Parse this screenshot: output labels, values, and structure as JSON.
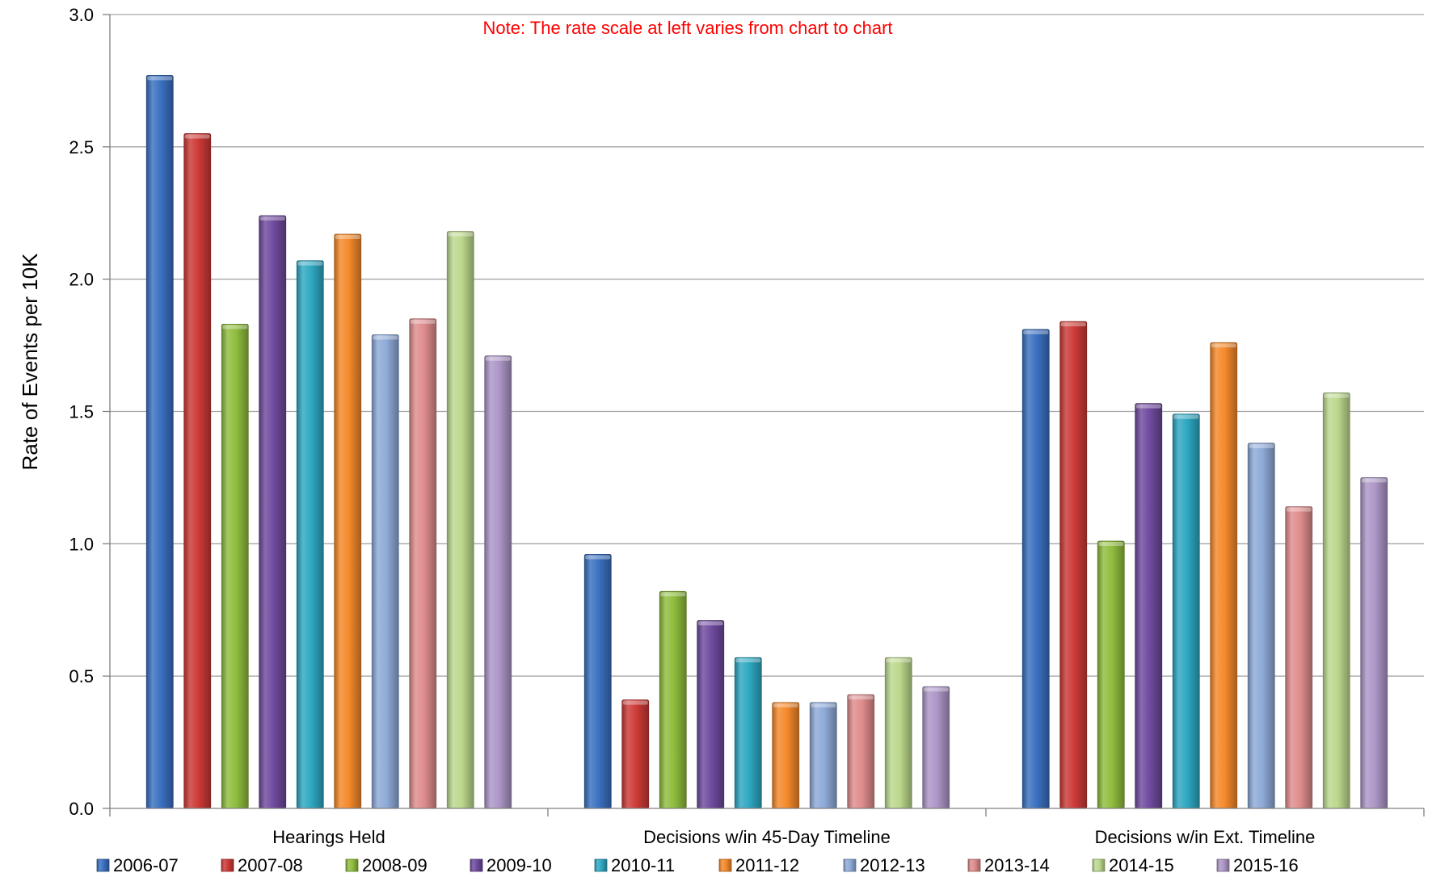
{
  "chart_data": {
    "type": "bar",
    "ylabel": "Rate of Events per 10K",
    "annotation": "Note:  The rate scale at left varies from chart to chart",
    "ylim": [
      0,
      3.0
    ],
    "yticks": [
      "0.0",
      "0.5",
      "1.0",
      "1.5",
      "2.0",
      "2.5",
      "3.0"
    ],
    "grid": true,
    "legend_position": "bottom",
    "categories": [
      "Hearings Held",
      "Decisions w/in 45-Day Timeline",
      "Decisions w/in Ext. Timeline"
    ],
    "series": [
      {
        "name": "2006-07",
        "color": "#3a70c0",
        "values": [
          2.77,
          0.96,
          1.81
        ]
      },
      {
        "name": "2007-08",
        "color": "#cc3a36",
        "values": [
          2.55,
          0.41,
          1.84
        ]
      },
      {
        "name": "2008-09",
        "color": "#8fbd3d",
        "values": [
          1.83,
          0.82,
          1.01
        ]
      },
      {
        "name": "2009-10",
        "color": "#6f4a9e",
        "values": [
          2.24,
          0.71,
          1.53
        ]
      },
      {
        "name": "2010-11",
        "color": "#2ea7c2",
        "values": [
          2.07,
          0.57,
          1.49
        ]
      },
      {
        "name": "2011-12",
        "color": "#f5892a",
        "values": [
          2.17,
          0.4,
          1.76
        ]
      },
      {
        "name": "2012-13",
        "color": "#8eaad8",
        "values": [
          1.79,
          0.4,
          1.38
        ]
      },
      {
        "name": "2013-14",
        "color": "#df8c8c",
        "values": [
          1.85,
          0.43,
          1.14
        ]
      },
      {
        "name": "2014-15",
        "color": "#bcd88d",
        "values": [
          2.18,
          0.57,
          1.57
        ]
      },
      {
        "name": "2015-16",
        "color": "#ac96c7",
        "values": [
          1.71,
          0.46,
          1.25
        ]
      }
    ]
  }
}
